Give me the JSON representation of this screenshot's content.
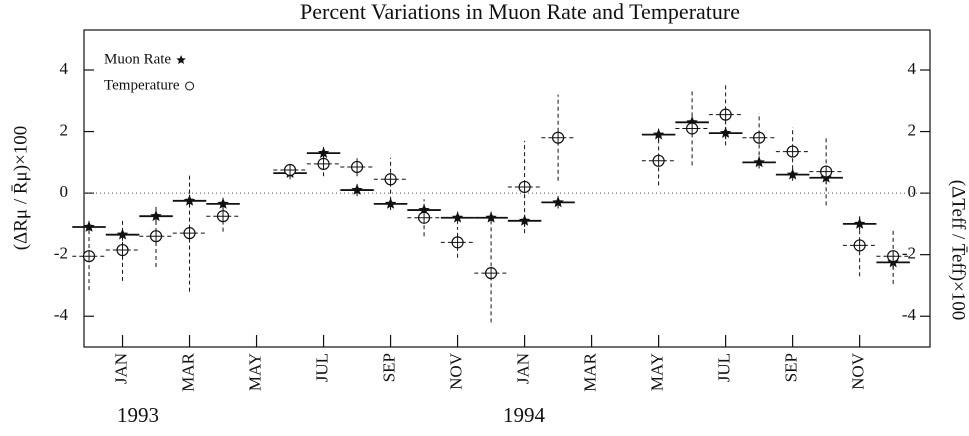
{
  "chart_data": {
    "type": "errorbar",
    "title": "Percent Variations in Muon Rate and Temperature",
    "y_label": "(ΔRμ / R̄μ)×100",
    "y2_label": "(ΔTeff / T̄eff)×100",
    "year_labels": [
      "1993",
      "1994"
    ],
    "x": [
      0,
      1,
      2,
      3,
      4,
      5,
      6,
      7,
      8,
      9,
      10,
      11,
      12,
      13,
      14,
      15,
      16,
      17,
      18,
      19,
      20,
      21,
      22,
      23,
      24
    ],
    "xlim": [
      -0.15,
      25.1
    ],
    "xticks": [
      {
        "value": 1,
        "label": "JAN"
      },
      {
        "value": 3,
        "label": "MAR"
      },
      {
        "value": 5,
        "label": "MAY"
      },
      {
        "value": 7,
        "label": "JUL"
      },
      {
        "value": 9,
        "label": "SEP"
      },
      {
        "value": 11,
        "label": "NOV"
      },
      {
        "value": 13,
        "label": "JAN"
      },
      {
        "value": 15,
        "label": "MAR"
      },
      {
        "value": 17,
        "label": "MAY"
      },
      {
        "value": 19,
        "label": "JUL"
      },
      {
        "value": 21,
        "label": "SEP"
      },
      {
        "value": 23,
        "label": "NOV"
      }
    ],
    "ylim": [
      -5,
      5.3
    ],
    "yticks": [
      -4,
      -2,
      0,
      2,
      4
    ],
    "y2lim": [
      -5,
      5.3
    ],
    "y2ticks": [
      -4,
      -2,
      0,
      2,
      4
    ],
    "zero_line": true,
    "legend": "upper left",
    "series": [
      {
        "name": "Muon Rate",
        "marker": "star",
        "color": "#111111",
        "values": [
          -1.1,
          -1.35,
          -0.75,
          -0.25,
          -0.35,
          null,
          0.65,
          1.3,
          0.1,
          -0.35,
          -0.55,
          -0.8,
          -0.8,
          -0.9,
          -0.3,
          null,
          null,
          1.9,
          2.3,
          1.95,
          1.0,
          0.6,
          0.5,
          -1.0,
          -2.25
        ],
        "errors": [
          0.2,
          0.2,
          0.2,
          0.2,
          0.2,
          null,
          0.2,
          0.2,
          0.2,
          0.2,
          0.2,
          0.2,
          0.2,
          0.2,
          0.2,
          null,
          null,
          0.2,
          0.2,
          0.2,
          0.2,
          0.2,
          0.2,
          0.2,
          0.2
        ]
      },
      {
        "name": "Temperature",
        "marker": "circle",
        "color": "#111111",
        "axis": "y2",
        "values": [
          -2.05,
          -1.85,
          -1.4,
          -1.3,
          -0.75,
          null,
          0.75,
          0.95,
          0.85,
          0.45,
          -0.8,
          -1.6,
          -2.6,
          0.2,
          1.8,
          null,
          null,
          1.05,
          2.1,
          2.55,
          1.8,
          1.35,
          0.7,
          -1.7,
          -2.05
        ],
        "errors": [
          1.1,
          1.0,
          1.0,
          1.9,
          0.5,
          null,
          0.2,
          0.4,
          0.3,
          0.7,
          0.6,
          0.5,
          1.6,
          1.5,
          1.4,
          null,
          null,
          0.8,
          1.2,
          1.0,
          0.8,
          0.8,
          1.1,
          1.0,
          0.9
        ]
      }
    ]
  }
}
